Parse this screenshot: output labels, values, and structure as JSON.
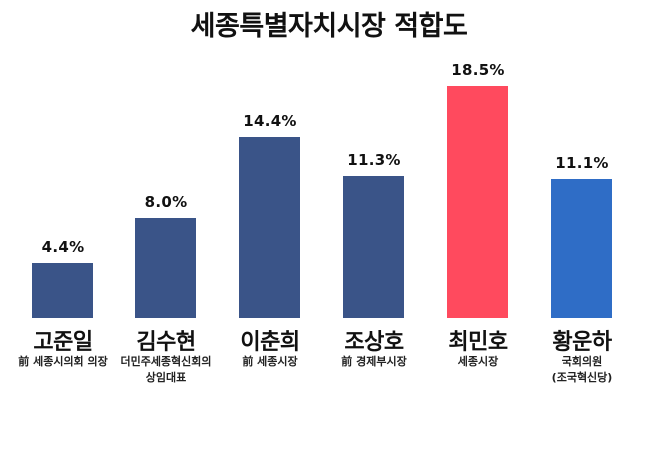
{
  "title": "세종특별자치시장 적합도",
  "colors": {
    "default_bar": "#3A5488",
    "highlight_bar": "#FF4A5E",
    "last_bar": "#2F6DC6"
  },
  "candidates": [
    {
      "name": "고준일",
      "desc": "前 세종시의회 의장",
      "value_label": "4.4%",
      "value": 4.4,
      "color": "#3A5488"
    },
    {
      "name": "김수현",
      "desc": "더민주세종혁신회의\n상임대표",
      "value_label": "8.0%",
      "value": 8.0,
      "color": "#3A5488"
    },
    {
      "name": "이춘희",
      "desc": "前 세종시장",
      "value_label": "14.4%",
      "value": 14.4,
      "color": "#3A5488"
    },
    {
      "name": "조상호",
      "desc": "前 경제부시장",
      "value_label": "11.3%",
      "value": 11.3,
      "color": "#3A5488"
    },
    {
      "name": "최민호",
      "desc": "세종시장",
      "value_label": "18.5%",
      "value": 18.5,
      "color": "#FF4A5E"
    },
    {
      "name": "황운하",
      "desc": "국회의원\n(조국혁신당)",
      "value_label": "11.1%",
      "value": 11.1,
      "color": "#2F6DC6"
    }
  ],
  "chart_data": {
    "type": "bar",
    "title": "세종특별자치시장 적합도",
    "categories": [
      "고준일",
      "김수현",
      "이춘희",
      "조상호",
      "최민호",
      "황운하"
    ],
    "category_subtitles": [
      "前 세종시의회 의장",
      "더민주세종혁신회의 상임대표",
      "前 세종시장",
      "前 경제부시장",
      "세종시장",
      "국회의원 (조국혁신당)"
    ],
    "values": [
      4.4,
      8.0,
      14.4,
      11.3,
      18.5,
      11.1
    ],
    "data_labels": [
      "4.4%",
      "8.0%",
      "14.4%",
      "11.3%",
      "18.5%",
      "11.1%"
    ],
    "unit": "%",
    "xlabel": "",
    "ylabel": "",
    "ylim": [
      0,
      20
    ],
    "grid": false,
    "legend": null,
    "bar_colors": [
      "#3A5488",
      "#3A5488",
      "#3A5488",
      "#3A5488",
      "#FF4A5E",
      "#2F6DC6"
    ]
  }
}
